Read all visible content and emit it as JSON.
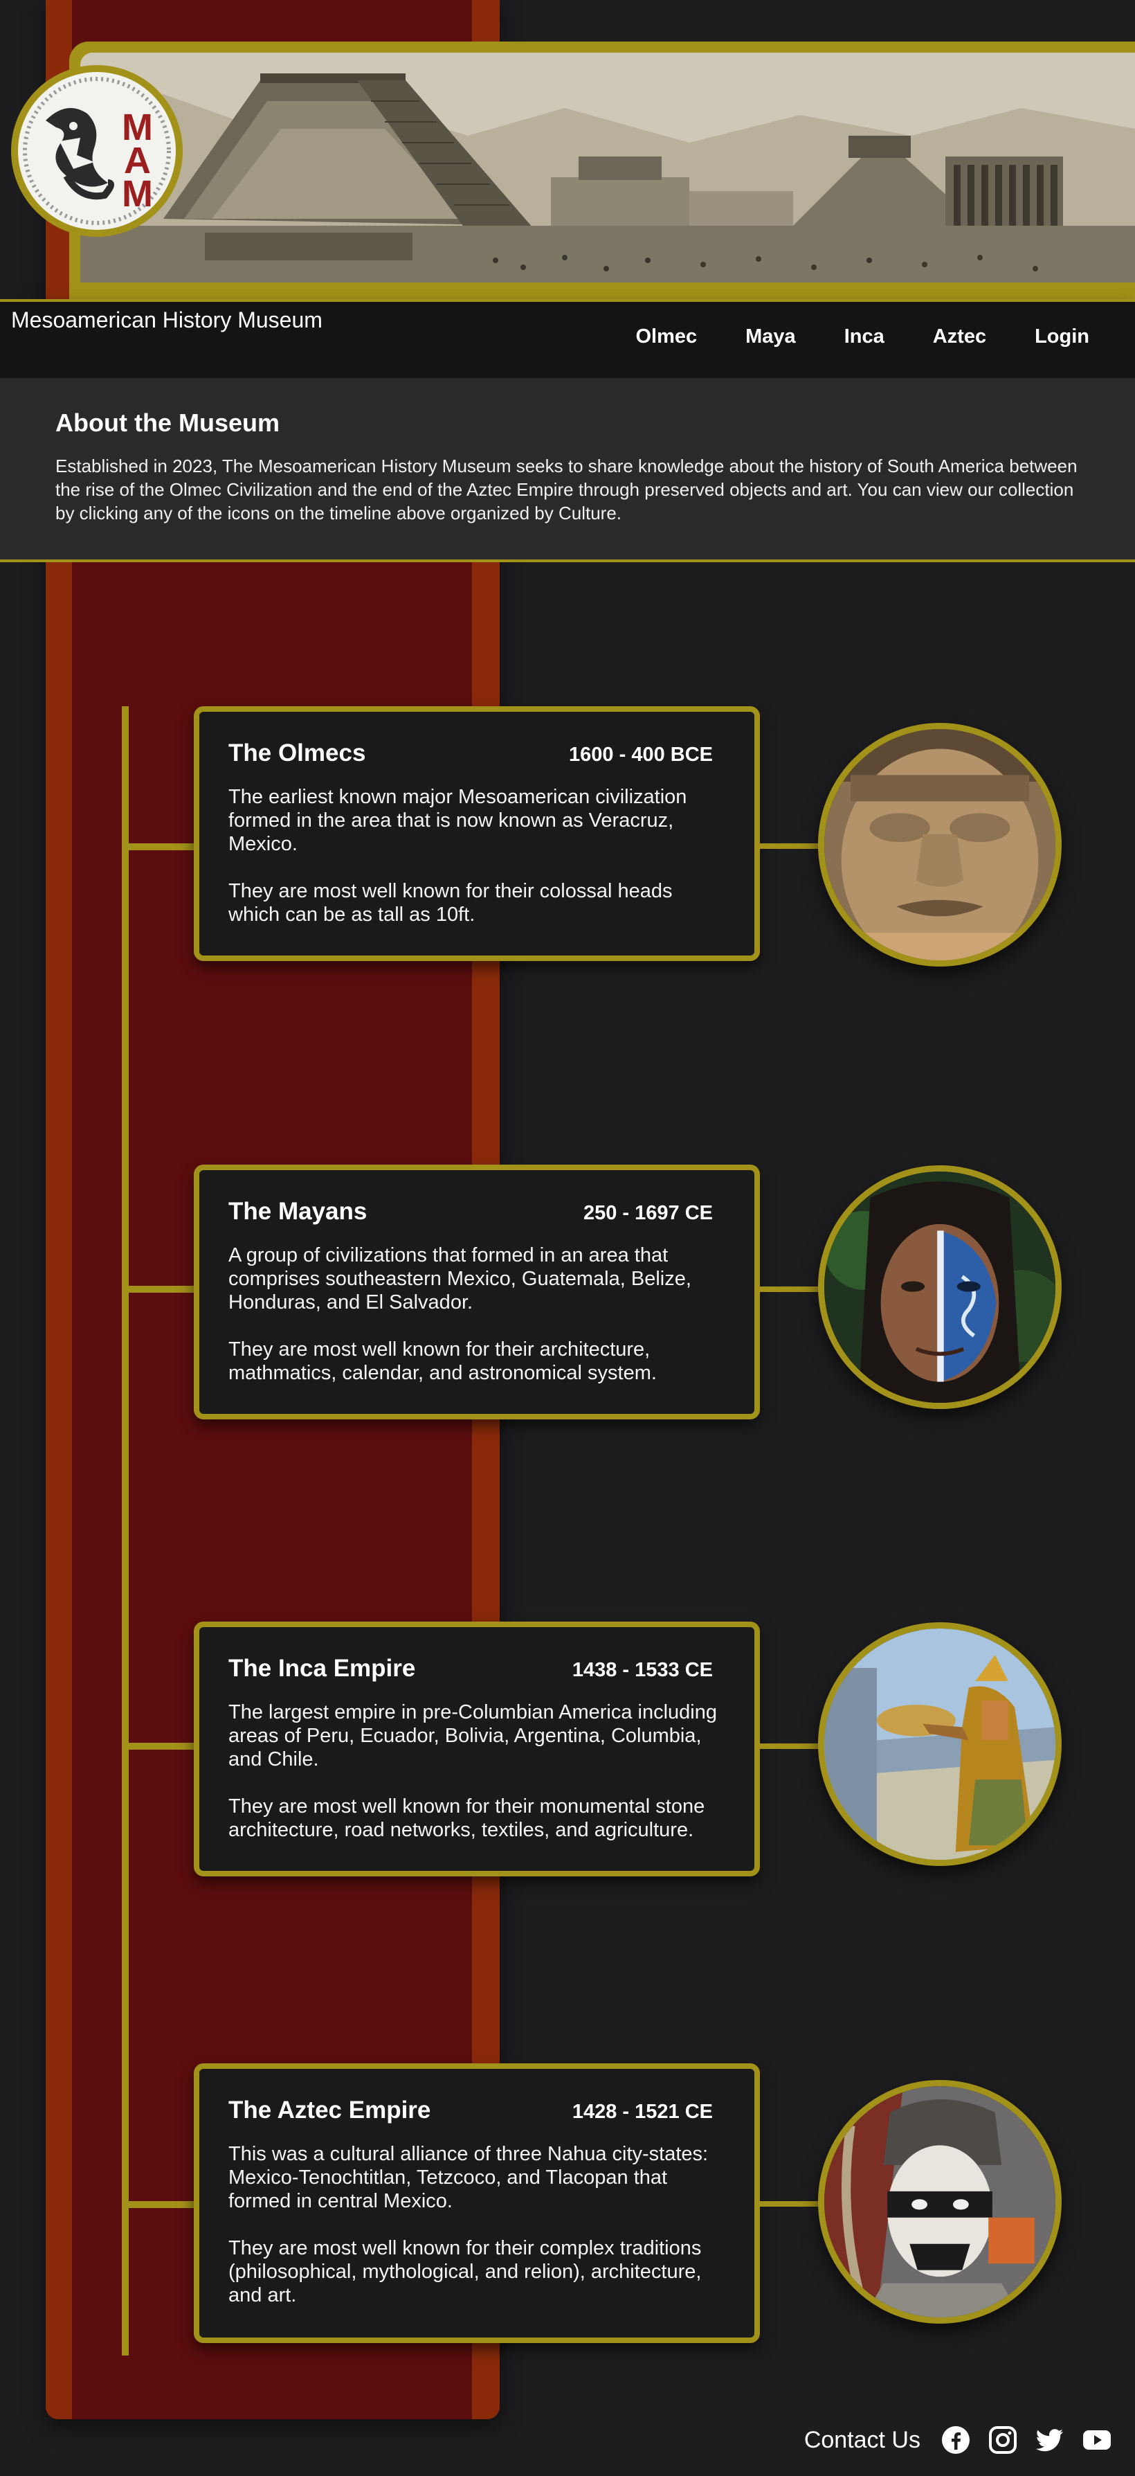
{
  "header": {
    "site_title": "Mesoamerican History Museum",
    "logo_letters": [
      "M",
      "A",
      "M"
    ],
    "nav": [
      {
        "label": "Olmec",
        "name": "nav-olmec"
      },
      {
        "label": "Maya",
        "name": "nav-maya"
      },
      {
        "label": "Inca",
        "name": "nav-inca"
      },
      {
        "label": "Aztec",
        "name": "nav-aztec"
      },
      {
        "label": "Login",
        "name": "nav-login"
      }
    ]
  },
  "about": {
    "heading": "About the Museum",
    "text": "Established in 2023, The Mesoamerican History Museum seeks to share knowledge about the history of South America between the rise of the Olmec Civilization and the end of the Aztec Empire through preserved objects and art. You can view our collection by clicking any of the icons on the timeline above organized by Culture."
  },
  "timeline": [
    {
      "title": "The Olmecs",
      "dates": "1600 - 400 BCE",
      "p1": "The earliest known major Mesoamerican civilization formed in the area that is now known as Veracruz, Mexico.",
      "p2": "They are most well known for their colossal heads which can be as tall as 10ft.",
      "image": "olmec-colossal-head-image"
    },
    {
      "title": "The Mayans",
      "dates": "250 - 1697 CE",
      "p1": "A group of civilizations that formed in an area that comprises southeastern Mexico, Guatemala, Belize, Honduras, and El Salvador.",
      "p2": "They are most well known for their architecture, mathmatics, calendar, and astronomical system.",
      "image": "maya-painted-face-image"
    },
    {
      "title": "The Inca Empire",
      "dates": "1438 - 1533 CE",
      "p1": "The largest empire in pre-Columbian America including areas of Peru, Ecuador, Bolivia, Argentina, Columbia, and Chile.",
      "p2": "They are most well known for their monumental stone architecture, road networks, textiles, and agriculture.",
      "image": "inca-painting-image"
    },
    {
      "title": "The Aztec Empire",
      "dates": "1428 - 1521 CE",
      "p1": "This was a cultural alliance of three Nahua city-states: Mexico-Tenochtitlan, Tetzcoco, and Tlacopan that formed in central Mexico.",
      "p2": "They are most well known for their complex traditions (philosophical, mythological, and relion), architecture, and art.",
      "image": "aztec-dancer-image"
    }
  ],
  "footer": {
    "contact_label": "Contact Us",
    "social": [
      "facebook-icon",
      "instagram-icon",
      "twitter-icon",
      "youtube-icon"
    ]
  },
  "colors": {
    "background": "#1d1d1f",
    "accent_gold": "#a39219",
    "column_red": "#5c0d0d",
    "column_orange": "#8a2a0a",
    "card": "#1a1a1a"
  }
}
